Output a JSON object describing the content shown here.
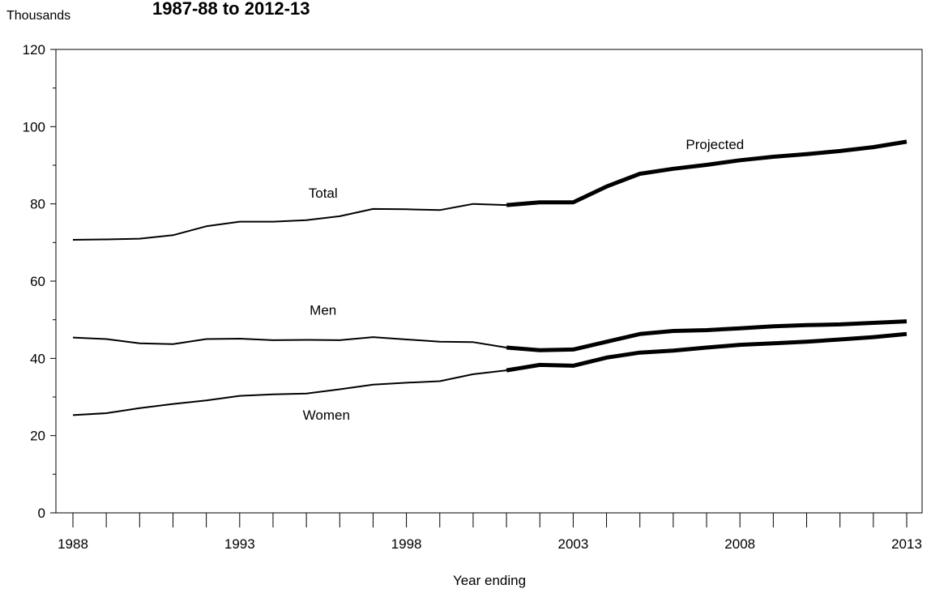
{
  "chart_data": {
    "type": "line",
    "title": "1987-88 to 2012-13",
    "ylabel": "Thousands",
    "xlabel": "Year ending",
    "xlim": [
      1988,
      2013
    ],
    "ylim": [
      0,
      120
    ],
    "y_ticks": [
      0,
      20,
      40,
      60,
      80,
      100,
      120
    ],
    "x_tick_labels": [
      1988,
      1993,
      1998,
      2003,
      2008,
      2013
    ],
    "grid": false,
    "projection_start": 2001,
    "series": [
      {
        "name": "Total",
        "x": [
          1988,
          1989,
          1990,
          1991,
          1992,
          1993,
          1994,
          1995,
          1996,
          1997,
          1998,
          1999,
          2000,
          2001,
          2002,
          2003,
          2004,
          2005,
          2006,
          2007,
          2008,
          2009,
          2010,
          2011,
          2012,
          2013
        ],
        "values": [
          70.7,
          70.8,
          71.0,
          71.9,
          74.2,
          75.4,
          75.4,
          75.8,
          76.8,
          78.7,
          78.6,
          78.4,
          80.0,
          79.7,
          80.4,
          80.4,
          84.5,
          87.8,
          89.1,
          90.1,
          91.3,
          92.2,
          92.9,
          93.7,
          94.7,
          96.1
        ]
      },
      {
        "name": "Men",
        "x": [
          1988,
          1989,
          1990,
          1991,
          1992,
          1993,
          1994,
          1995,
          1996,
          1997,
          1998,
          1999,
          2000,
          2001,
          2002,
          2003,
          2004,
          2005,
          2006,
          2007,
          2008,
          2009,
          2010,
          2011,
          2012,
          2013
        ],
        "values": [
          45.4,
          45.0,
          43.9,
          43.7,
          45.0,
          45.1,
          44.7,
          44.8,
          44.7,
          45.5,
          44.9,
          44.3,
          44.2,
          42.8,
          42.1,
          42.3,
          44.3,
          46.3,
          47.1,
          47.3,
          47.8,
          48.3,
          48.6,
          48.8,
          49.2,
          49.6
        ]
      },
      {
        "name": "Women",
        "x": [
          1988,
          1989,
          1990,
          1991,
          1992,
          1993,
          1994,
          1995,
          1996,
          1997,
          1998,
          1999,
          2000,
          2001,
          2002,
          2003,
          2004,
          2005,
          2006,
          2007,
          2008,
          2009,
          2010,
          2011,
          2012,
          2013
        ],
        "values": [
          25.3,
          25.8,
          27.1,
          28.2,
          29.1,
          30.3,
          30.7,
          30.9,
          32.0,
          33.2,
          33.7,
          34.1,
          35.9,
          36.9,
          38.3,
          38.1,
          40.2,
          41.5,
          42.0,
          42.8,
          43.5,
          43.9,
          44.3,
          44.9,
          45.5,
          46.3
        ]
      }
    ],
    "annotations": [
      {
        "id": "projected",
        "text": "Projected",
        "x": 2007.25,
        "y": 94.2
      },
      {
        "id": "total",
        "text": "Total",
        "x": 1995.5,
        "y": 81.6
      },
      {
        "id": "men",
        "text": "Men",
        "x": 1995.5,
        "y": 51.3
      },
      {
        "id": "women",
        "text": "Women",
        "x": 1995.6,
        "y": 24.1
      }
    ]
  }
}
